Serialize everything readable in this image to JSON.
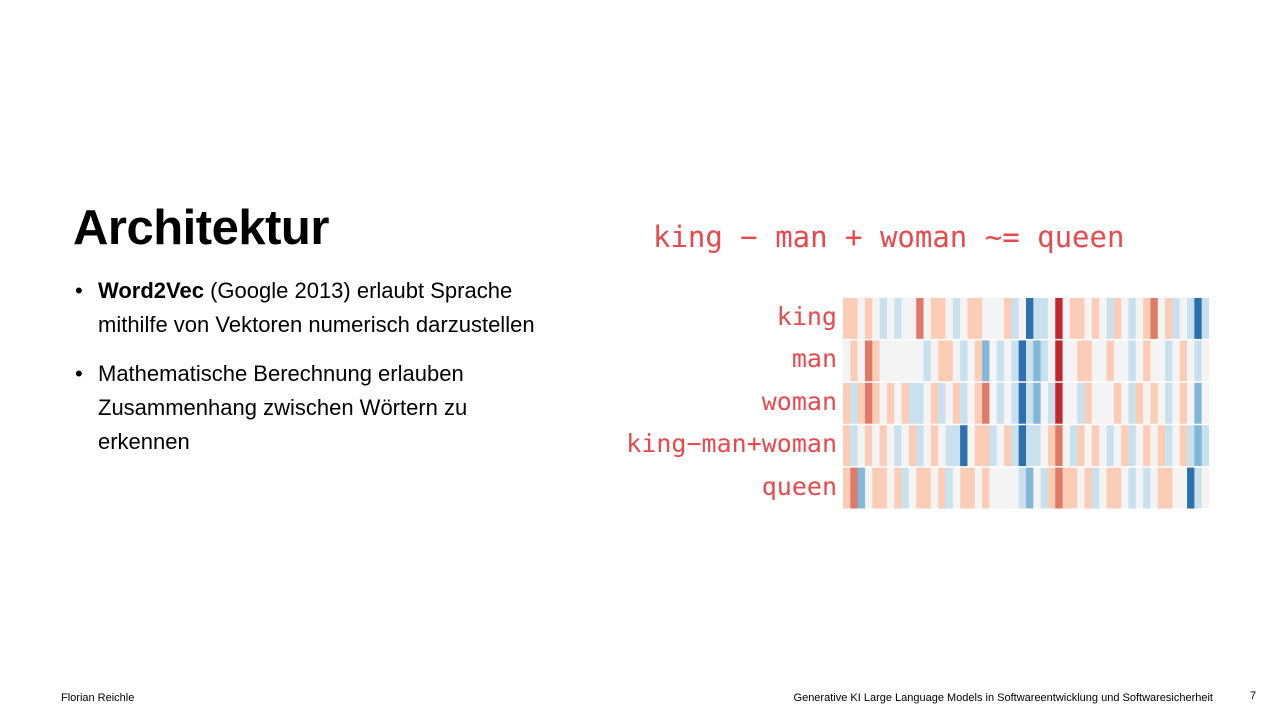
{
  "slide": {
    "title": "Architektur",
    "bullets": [
      {
        "bold": "Word2Vec",
        "rest": " (Google 2013) erlaubt Sprache mithilfe von Vektoren numerisch darzustellen"
      },
      {
        "bold": "",
        "rest": "Mathematische Berechnung erlauben Zusammenhang zwischen Wörtern zu erkennen"
      }
    ],
    "bullet_symbol": "•"
  },
  "figure": {
    "equation": "king − man + woman ~= queen",
    "label_color": "#e8494d"
  },
  "chart_data": {
    "type": "heatmap",
    "rows": [
      "king",
      "man",
      "woman",
      "king−man+woman",
      "queen"
    ],
    "columns": 50,
    "scale": "diverging red-white-blue (-3 strong red … 0 white … +3 strong blue)",
    "values": [
      [
        -1,
        -1,
        0,
        -1,
        0,
        1,
        0,
        1,
        0,
        0,
        -2,
        0,
        -1,
        -1,
        0,
        1,
        0,
        -1,
        -1,
        0,
        0,
        0,
        -1,
        1,
        0,
        3,
        1,
        1,
        0,
        -3,
        0,
        -1,
        -1,
        0,
        -1,
        0,
        1,
        -1,
        0,
        1,
        0,
        -1,
        -2,
        0,
        -1,
        1,
        0,
        1,
        3,
        1
      ],
      [
        0,
        -1,
        0,
        -2,
        -1,
        0,
        0,
        0,
        0,
        0,
        0,
        1,
        0,
        -1,
        -1,
        0,
        1,
        0,
        -1,
        2,
        0,
        1,
        0,
        1,
        3,
        1,
        2,
        1,
        0,
        -3,
        0,
        0,
        -1,
        -1,
        0,
        0,
        -1,
        0,
        0,
        1,
        0,
        -1,
        0,
        0,
        1,
        0,
        -1,
        0,
        1,
        0
      ],
      [
        -1,
        1,
        -1,
        -2,
        -1,
        0,
        -1,
        0,
        -1,
        1,
        1,
        0,
        -1,
        1,
        0,
        -1,
        1,
        0,
        -1,
        -2,
        0,
        1,
        0,
        1,
        3,
        1,
        2,
        0,
        1,
        -3,
        0,
        0,
        1,
        -1,
        0,
        0,
        0,
        -1,
        0,
        1,
        -1,
        0,
        -1,
        0,
        1,
        0,
        -1,
        0,
        2,
        0
      ],
      [
        -1,
        1,
        0,
        -1,
        0,
        -1,
        0,
        1,
        0,
        -1,
        1,
        0,
        -1,
        0,
        1,
        1,
        3,
        0,
        -1,
        -1,
        1,
        0,
        -1,
        1,
        3,
        1,
        1,
        0,
        -1,
        -2,
        0,
        1,
        -1,
        0,
        -1,
        0,
        1,
        0,
        -1,
        1,
        0,
        -1,
        0,
        -1,
        1,
        0,
        -1,
        1,
        2,
        1
      ],
      [
        -1,
        -2,
        2,
        0,
        -1,
        -1,
        0,
        -1,
        1,
        0,
        -1,
        -1,
        0,
        -1,
        1,
        0,
        -1,
        -1,
        0,
        -1,
        0,
        0,
        0,
        0,
        1,
        2,
        0,
        1,
        -1,
        -2,
        -1,
        -1,
        0,
        -1,
        1,
        0,
        -1,
        -1,
        0,
        1,
        0,
        1,
        0,
        -1,
        -1,
        0,
        0,
        3,
        1,
        0
      ]
    ]
  },
  "footer": {
    "author": "Florian Reichle",
    "course": "Generative KI Large Language Models in Softwareentwicklung und Softwaresicherheit",
    "page": "7"
  }
}
